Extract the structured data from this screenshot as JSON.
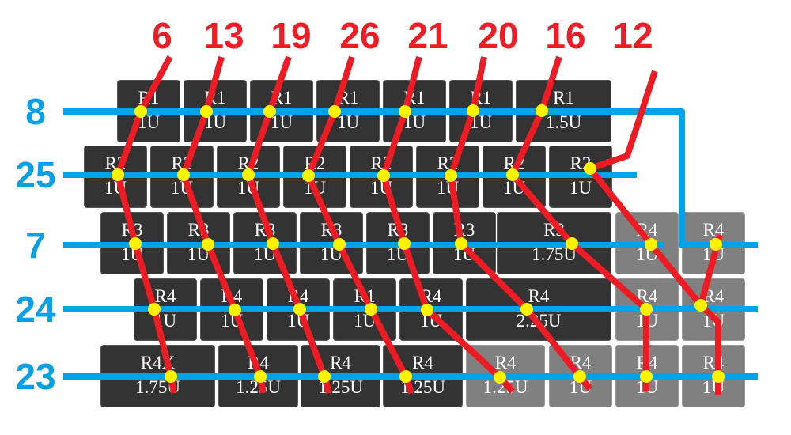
{
  "colors": {
    "row_wire": "#00a2e8",
    "col_wire": "#ed1c24",
    "node": "#fff200",
    "key": "#333333",
    "key_alt": "#808080"
  },
  "row_pins": [
    "8",
    "25",
    "7",
    "24",
    "23"
  ],
  "col_pins": [
    "6",
    "13",
    "19",
    "26",
    "21",
    "20",
    "16",
    "12"
  ],
  "keys": [
    [
      {
        "r": "R1",
        "s": "1U"
      },
      {
        "r": "R1",
        "s": "1U"
      },
      {
        "r": "R1",
        "s": "1U"
      },
      {
        "r": "R1",
        "s": "1U"
      },
      {
        "r": "R1",
        "s": "1U"
      },
      {
        "r": "R1",
        "s": "1U"
      },
      {
        "r": "R1",
        "s": "1.5U"
      }
    ],
    [
      {
        "r": "R2",
        "s": "1U"
      },
      {
        "r": "R2",
        "s": "1U"
      },
      {
        "r": "R2",
        "s": "1U"
      },
      {
        "r": "R2",
        "s": "1U"
      },
      {
        "r": "R2",
        "s": "1U"
      },
      {
        "r": "R2",
        "s": "1U"
      },
      {
        "r": "R2",
        "s": "1U"
      },
      {
        "r": "R2",
        "s": "1U"
      }
    ],
    [
      {
        "r": "R3",
        "s": "1U"
      },
      {
        "r": "R3",
        "s": "1U"
      },
      {
        "r": "R3",
        "s": "1U"
      },
      {
        "r": "R3",
        "s": "1U"
      },
      {
        "r": "R3",
        "s": "1U"
      },
      {
        "r": "R3",
        "s": "1U"
      },
      {
        "r": "R3",
        "s": "1.75U"
      },
      {
        "r": "R4",
        "s": "1U",
        "alt": true
      },
      {
        "r": "R4",
        "s": "1U",
        "alt": true
      }
    ],
    [
      {
        "r": "R4",
        "s": "1U"
      },
      {
        "r": "R4",
        "s": "1U"
      },
      {
        "r": "R4",
        "s": "1U"
      },
      {
        "r": "R1",
        "s": "1U"
      },
      {
        "r": "R4",
        "s": "1U"
      },
      {
        "r": "R4",
        "s": "2.25U"
      },
      {
        "r": "R4",
        "s": "1U",
        "alt": true
      },
      {
        "r": "R4",
        "s": "1U",
        "alt": true
      }
    ],
    [
      {
        "r": "R4X",
        "s": "1.75U"
      },
      {
        "r": "R4",
        "s": "1.25U"
      },
      {
        "r": "R4",
        "s": "1.25U"
      },
      {
        "r": "R4",
        "s": "1.25U"
      },
      {
        "r": "R4",
        "s": "1.25U",
        "alt": true
      },
      {
        "r": "R4",
        "s": "1U",
        "alt": true
      },
      {
        "r": "R4",
        "s": "1U",
        "alt": true
      },
      {
        "r": "R4",
        "s": "1U",
        "alt": true
      }
    ]
  ]
}
